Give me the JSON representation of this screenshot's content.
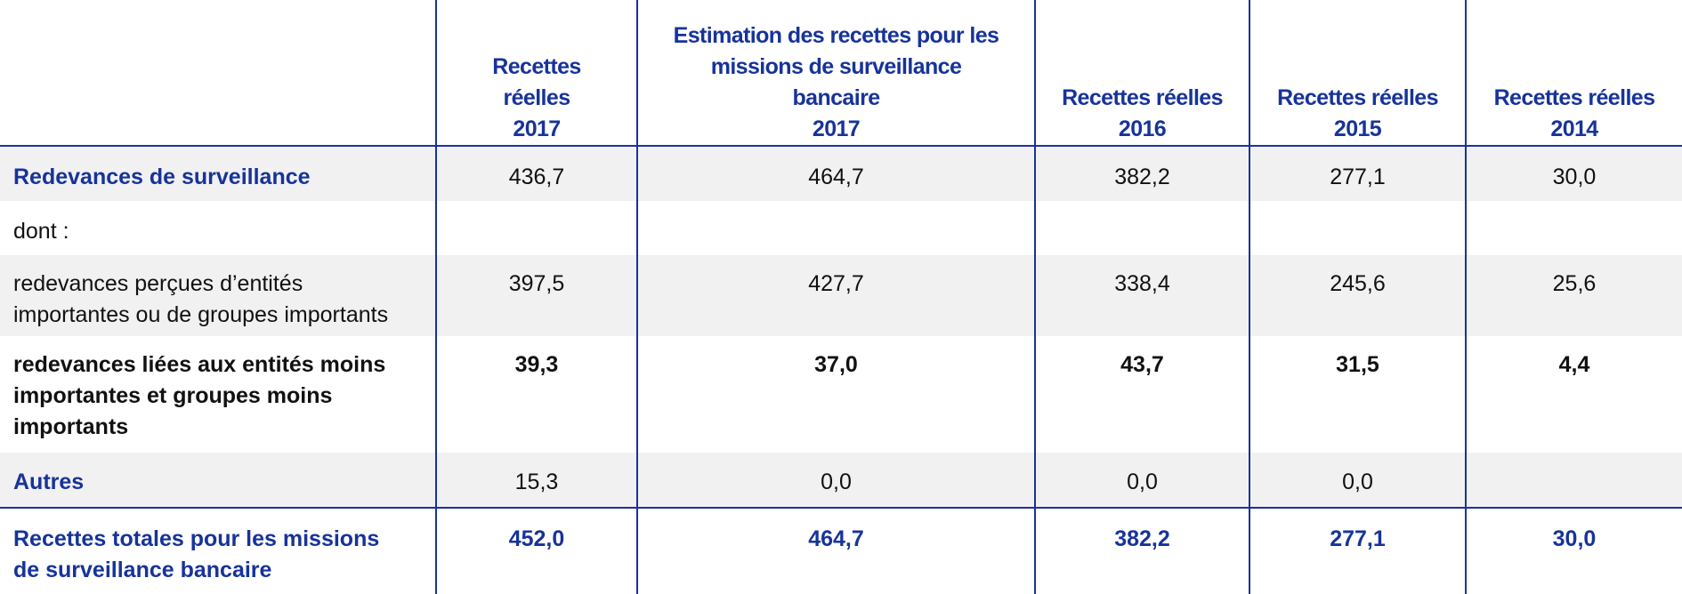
{
  "columns": [
    "",
    "Recettes\nréelles\n2017",
    "Estimation des recettes pour les\nmissions de surveillance\nbancaire\n2017",
    "Recettes réelles\n2016",
    "Recettes réelles\n2015",
    "Recettes réelles\n2014"
  ],
  "rows": [
    {
      "label": "Redevances de surveillance",
      "values": [
        "436,7",
        "464,7",
        "382,2",
        "277,1",
        "30,0"
      ]
    },
    {
      "label": "dont :",
      "values": [
        "",
        "",
        "",
        "",
        ""
      ]
    },
    {
      "label": "redevances perçues d’entités\nimportantes ou de groupes importants",
      "values": [
        "397,5",
        "427,7",
        "338,4",
        "245,6",
        "25,6"
      ]
    },
    {
      "label": "redevances liées aux entités moins\nimportantes et groupes moins\nimportants",
      "values": [
        "39,3",
        "37,0",
        "43,7",
        "31,5",
        "4,4"
      ]
    },
    {
      "label": "Autres",
      "values": [
        "15,3",
        "0,0",
        "0,0",
        "0,0",
        ""
      ]
    },
    {
      "label": "Recettes totales pour les missions\nde surveillance bancaire",
      "values": [
        "452,0",
        "464,7",
        "382,2",
        "277,1",
        "30,0"
      ]
    }
  ],
  "colors": {
    "accent_blue": "#17339a",
    "row_shade": "#f1f1f1",
    "text": "#111111"
  }
}
